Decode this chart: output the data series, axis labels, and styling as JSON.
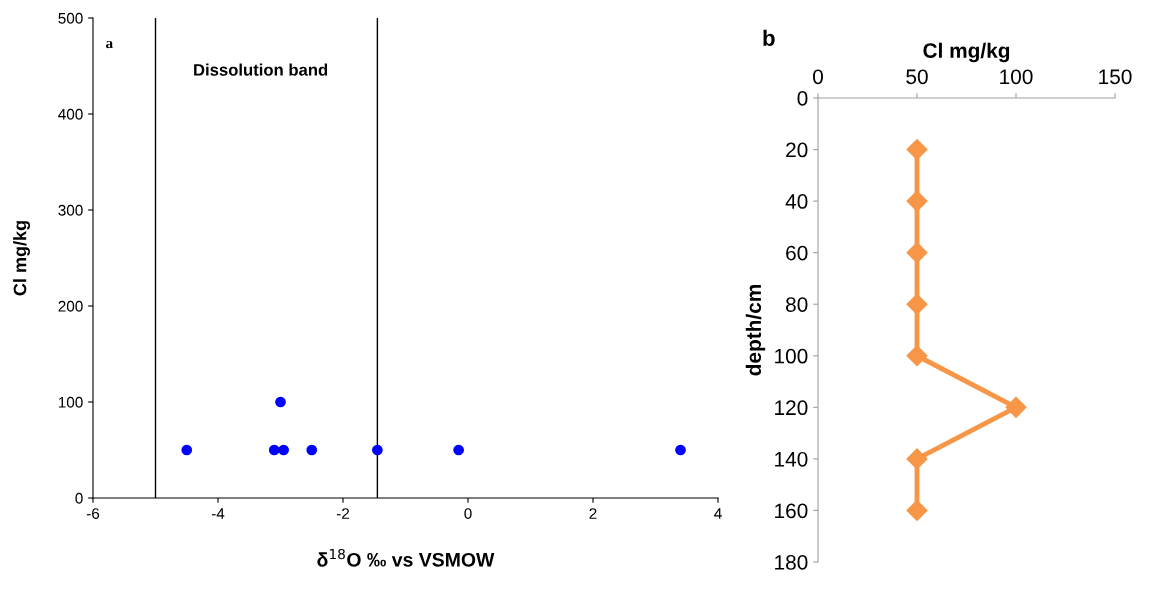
{
  "chart_data": [
    {
      "type": "scatter",
      "title": "a",
      "xlabel": "δ$^{18}$O ‰ vs VSMOW",
      "ylabel": "Cl mg/kg",
      "x": [
        -4.5,
        -3.1,
        -2.95,
        -3.0,
        -2.5,
        -1.45,
        -0.15,
        3.4
      ],
      "values": [
        50,
        50,
        50,
        100,
        50,
        50,
        50,
        50
      ],
      "color": "#0000ff",
      "marker": "circle",
      "xlim": [
        -6,
        4
      ],
      "xticks": [
        -6,
        -4,
        -2,
        0,
        2,
        4
      ],
      "ylim": [
        0,
        500
      ],
      "yticks": [
        0,
        100,
        200,
        300,
        400,
        500
      ],
      "ref_lines": [
        {
          "axis": "x",
          "value": -5,
          "color": "#000000"
        },
        {
          "axis": "x",
          "value": -1.45,
          "color": "#000000"
        }
      ],
      "annotations": [
        "Dissolution band"
      ],
      "grid": false,
      "legend": false
    },
    {
      "type": "line",
      "title": "b",
      "xlabel": "Cl mg/kg",
      "ylabel": "depth/cm",
      "x": [
        50,
        50,
        50,
        50,
        50,
        100,
        50,
        50
      ],
      "values": [
        20,
        40,
        60,
        80,
        100,
        120,
        140,
        160
      ],
      "color": "#f79646",
      "marker": "diamond",
      "line_style": "solid",
      "xlim": [
        0,
        150
      ],
      "xticks": [
        0,
        50,
        100,
        150
      ],
      "ylim": [
        180,
        0
      ],
      "yticks": [
        0,
        20,
        40,
        60,
        80,
        100,
        120,
        140,
        160,
        180
      ],
      "grid": false,
      "legend": false
    }
  ]
}
